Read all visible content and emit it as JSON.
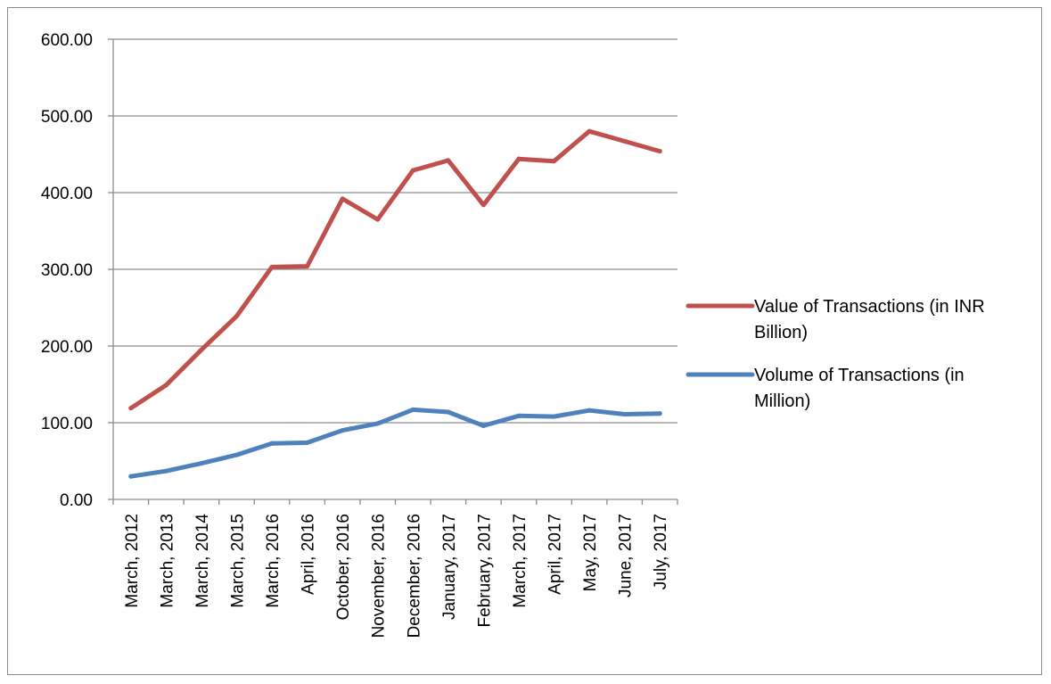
{
  "chart_data": {
    "type": "line",
    "categories": [
      "March, 2012",
      "March, 2013",
      "March, 2014",
      "March, 2015",
      "March, 2016",
      "April, 2016",
      "October, 2016",
      "November, 2016",
      "December, 2016",
      "January, 2017",
      "February, 2017",
      "March, 2017",
      "April, 2017",
      "May, 2017",
      "June, 2017",
      "July, 2017"
    ],
    "series": [
      {
        "name": "Value of Transactions (in INR Billion)",
        "name_lines": [
          "Value of Transactions (in INR",
          "Billion)"
        ],
        "color": "#c0504d",
        "values": [
          119,
          149,
          195,
          239,
          303,
          304,
          392,
          365,
          429,
          442,
          384,
          444,
          441,
          480,
          467,
          454
        ]
      },
      {
        "name": "Volume of Transactions (in Million)",
        "name_lines": [
          "Volume of Transactions (in",
          "Million)"
        ],
        "color": "#4f81bd",
        "values": [
          30,
          37,
          47,
          58,
          73,
          74,
          90,
          99,
          117,
          114,
          96,
          109,
          108,
          116,
          111,
          112
        ]
      }
    ],
    "ylim": [
      0,
      600
    ],
    "yticks": [
      "0.00",
      "100.00",
      "200.00",
      "300.00",
      "400.00",
      "500.00",
      "600.00"
    ],
    "grid": true,
    "legend_position": "right"
  }
}
